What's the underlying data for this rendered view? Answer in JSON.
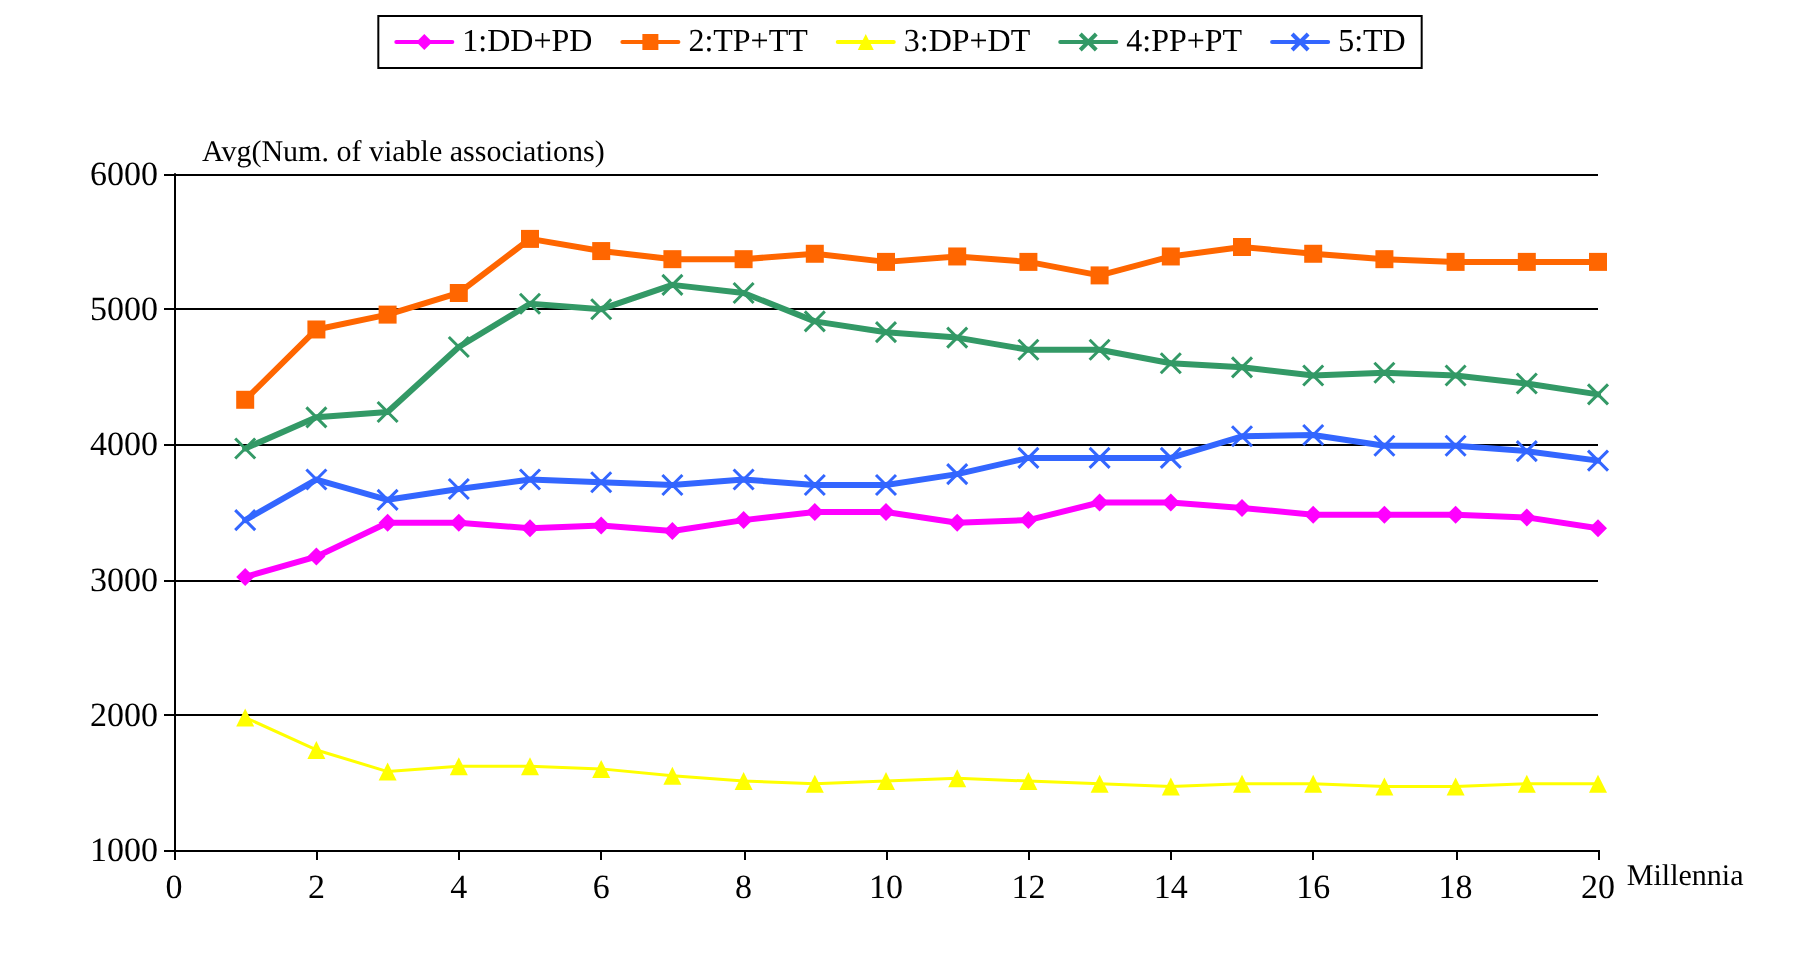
{
  "chart_data": {
    "type": "line",
    "xlabel": "Millennia",
    "ylabel": "Avg(Num. of viable associations)",
    "x": [
      1,
      2,
      3,
      4,
      5,
      6,
      7,
      8,
      9,
      10,
      11,
      12,
      13,
      14,
      15,
      16,
      17,
      18,
      19,
      20
    ],
    "xlim": [
      0,
      20
    ],
    "xticks": [
      0,
      2,
      4,
      6,
      8,
      10,
      12,
      14,
      16,
      18,
      20
    ],
    "ylim": [
      1000,
      6000
    ],
    "yticks": [
      1000,
      2000,
      3000,
      4000,
      5000,
      6000
    ],
    "grid": "y",
    "legend": "top",
    "line_style": "solid",
    "series": [
      {
        "name": "1:DD+PD",
        "color": "#ff00ff",
        "marker": "diamond",
        "values": [
          3020,
          3170,
          3420,
          3420,
          3380,
          3400,
          3360,
          3440,
          3500,
          3500,
          3420,
          3440,
          3570,
          3570,
          3530,
          3480,
          3480,
          3480,
          3460,
          3380
        ]
      },
      {
        "name": "2:TP+TT",
        "color": "#ff6600",
        "marker": "square",
        "values": [
          4330,
          4850,
          4960,
          5120,
          5520,
          5430,
          5370,
          5370,
          5410,
          5350,
          5390,
          5350,
          5250,
          5390,
          5460,
          5410,
          5370,
          5350,
          5350,
          5350
        ]
      },
      {
        "name": "3:DP+DT",
        "color": "#ffff00",
        "marker": "triangle",
        "values": [
          1980,
          1740,
          1580,
          1620,
          1620,
          1600,
          1550,
          1510,
          1490,
          1510,
          1530,
          1510,
          1490,
          1470,
          1490,
          1490,
          1470,
          1470,
          1490,
          1490
        ]
      },
      {
        "name": "4:PP+PT",
        "color": "#339966",
        "marker": "cross",
        "values": [
          3970,
          4200,
          4240,
          4720,
          5040,
          5000,
          5180,
          5120,
          4910,
          4830,
          4790,
          4700,
          4700,
          4600,
          4570,
          4510,
          4530,
          4510,
          4450,
          4370
        ]
      },
      {
        "name": "5:TD",
        "color": "#3366ff",
        "marker": "cross",
        "values": [
          3440,
          3740,
          3590,
          3670,
          3740,
          3720,
          3700,
          3740,
          3700,
          3700,
          3780,
          3900,
          3900,
          3900,
          4060,
          4070,
          3990,
          3990,
          3950,
          3880
        ]
      }
    ]
  }
}
